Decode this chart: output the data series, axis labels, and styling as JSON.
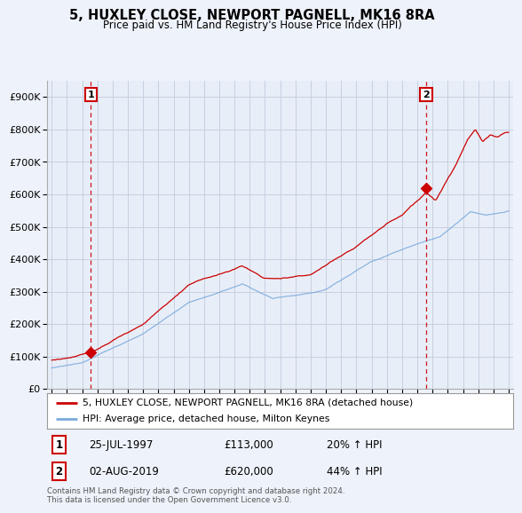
{
  "title": "5, HUXLEY CLOSE, NEWPORT PAGNELL, MK16 8RA",
  "subtitle": "Price paid vs. HM Land Registry's House Price Index (HPI)",
  "sale1_date": "25-JUL-1997",
  "sale1_price": 113000,
  "sale1_hpi_pct": "20% ↑ HPI",
  "sale2_date": "02-AUG-2019",
  "sale2_price": 620000,
  "sale2_hpi_pct": "44% ↑ HPI",
  "legend1": "5, HUXLEY CLOSE, NEWPORT PAGNELL, MK16 8RA (detached house)",
  "legend2": "HPI: Average price, detached house, Milton Keynes",
  "footnote": "Contains HM Land Registry data © Crown copyright and database right 2024.\nThis data is licensed under the Open Government Licence v3.0.",
  "sale1_x": 1997.575,
  "sale2_x": 2019.583,
  "ylim_max": 950000,
  "ylim_min": 0,
  "red_line_color": "#cc0000",
  "blue_line_color": "#7aaadd",
  "dashed_line_color": "#cc0000",
  "background_color": "#eef2fa",
  "plot_bg_color": "#e8eef8",
  "grid_color": "#c8d0e0"
}
